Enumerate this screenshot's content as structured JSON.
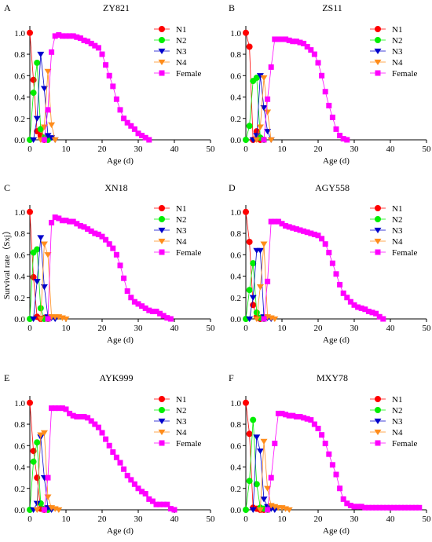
{
  "chart_data": [
    {
      "type": "line",
      "panel_letter": "A",
      "title": "ZY821",
      "xlabel": "Age (d)",
      "ylabel": "",
      "xlim": [
        0,
        50
      ],
      "ylim": [
        0,
        1.05
      ],
      "xticks": [
        "0",
        "10",
        "20",
        "30",
        "40",
        "50"
      ],
      "yticks": [
        "0.0",
        "0.2",
        "0.4",
        "0.6",
        "0.8",
        "1.0"
      ],
      "legend_position": "top-right",
      "series": [
        {
          "name": "N1",
          "color": "#ff0000",
          "marker": "circle",
          "x": [
            0,
            1,
            2,
            3,
            4
          ],
          "y": [
            1.0,
            0.56,
            0.08,
            0.04,
            0.0
          ]
        },
        {
          "name": "N2",
          "color": "#00ee00",
          "marker": "circle",
          "x": [
            0,
            1,
            2,
            3,
            4,
            5
          ],
          "y": [
            0.0,
            0.44,
            0.72,
            0.1,
            0.02,
            0.0
          ]
        },
        {
          "name": "N3",
          "color": "#0000cc",
          "marker": "triangle-down",
          "x": [
            1,
            2,
            3,
            4,
            5,
            6,
            7
          ],
          "y": [
            0.0,
            0.2,
            0.8,
            0.48,
            0.04,
            0.02,
            0.0
          ]
        },
        {
          "name": "N4",
          "color": "#ff8c1a",
          "marker": "triangle-down",
          "x": [
            3,
            4,
            5,
            6,
            7
          ],
          "y": [
            0.0,
            0.12,
            0.64,
            0.14,
            0.0
          ]
        },
        {
          "name": "Female",
          "color": "#ff00ff",
          "marker": "square",
          "x": [
            4,
            5,
            6,
            7,
            8,
            9,
            10,
            11,
            12,
            13,
            14,
            15,
            16,
            17,
            18,
            19,
            20,
            21,
            22,
            23,
            24,
            25,
            26,
            27,
            28,
            29,
            30,
            31,
            32,
            33
          ],
          "y": [
            0.0,
            0.28,
            0.82,
            0.97,
            0.98,
            0.97,
            0.97,
            0.97,
            0.97,
            0.96,
            0.95,
            0.93,
            0.92,
            0.9,
            0.88,
            0.86,
            0.8,
            0.7,
            0.6,
            0.5,
            0.38,
            0.28,
            0.2,
            0.16,
            0.13,
            0.1,
            0.06,
            0.04,
            0.02,
            0.0
          ]
        }
      ]
    },
    {
      "type": "line",
      "panel_letter": "B",
      "title": "ZS11",
      "xlabel": "Age (d)",
      "ylabel": "",
      "xlim": [
        0,
        50
      ],
      "ylim": [
        0,
        1.05
      ],
      "xticks": [
        "0",
        "10",
        "20",
        "30",
        "40",
        "50"
      ],
      "yticks": [
        "0.0",
        "0.2",
        "0.4",
        "0.6",
        "0.8",
        "1.0"
      ],
      "legend_position": "top-right",
      "series": [
        {
          "name": "N1",
          "color": "#ff0000",
          "marker": "circle",
          "x": [
            0,
            1,
            2,
            3,
            4
          ],
          "y": [
            1.0,
            0.87,
            0.0,
            0.08,
            0.0
          ]
        },
        {
          "name": "N2",
          "color": "#00ee00",
          "marker": "circle",
          "x": [
            0,
            1,
            2,
            3,
            4,
            5
          ],
          "y": [
            0.0,
            0.13,
            0.55,
            0.58,
            0.02,
            0.0
          ]
        },
        {
          "name": "N3",
          "color": "#0000cc",
          "marker": "triangle-down",
          "x": [
            2,
            3,
            4,
            5,
            6,
            7
          ],
          "y": [
            0.0,
            0.04,
            0.6,
            0.3,
            0.08,
            0.0
          ]
        },
        {
          "name": "N4",
          "color": "#ff8c1a",
          "marker": "triangle-down",
          "x": [
            3,
            4,
            5,
            6,
            7
          ],
          "y": [
            0.0,
            0.12,
            0.58,
            0.26,
            0.0
          ]
        },
        {
          "name": "Female",
          "color": "#ff00ff",
          "marker": "square",
          "x": [
            5,
            6,
            7,
            8,
            9,
            10,
            11,
            12,
            13,
            14,
            15,
            16,
            17,
            18,
            19,
            20,
            21,
            22,
            23,
            24,
            25,
            26,
            27,
            28
          ],
          "y": [
            0.0,
            0.38,
            0.68,
            0.94,
            0.94,
            0.94,
            0.94,
            0.93,
            0.92,
            0.92,
            0.91,
            0.9,
            0.87,
            0.84,
            0.8,
            0.72,
            0.6,
            0.45,
            0.32,
            0.21,
            0.1,
            0.04,
            0.01,
            0.0
          ]
        }
      ]
    },
    {
      "type": "line",
      "panel_letter": "C",
      "title": "XN18",
      "xlabel": "Age (d)",
      "ylabel": "Survival rate（Sxj）",
      "xlim": [
        0,
        50
      ],
      "ylim": [
        0,
        1.05
      ],
      "xticks": [
        "0",
        "10",
        "20",
        "30",
        "40",
        "50"
      ],
      "yticks": [
        "0.0",
        "0.2",
        "0.4",
        "0.6",
        "0.8",
        "1.0"
      ],
      "legend_position": "top-right",
      "series": [
        {
          "name": "N1",
          "color": "#ff0000",
          "marker": "circle",
          "x": [
            0,
            1,
            2,
            3,
            4,
            5
          ],
          "y": [
            1.0,
            0.39,
            0.02,
            0.0,
            0.01,
            0.0
          ]
        },
        {
          "name": "N2",
          "color": "#00ee00",
          "marker": "circle",
          "x": [
            0,
            1,
            2,
            3,
            4,
            5
          ],
          "y": [
            0.0,
            0.62,
            0.65,
            0.1,
            0.0,
            0.0
          ]
        },
        {
          "name": "N3",
          "color": "#0000cc",
          "marker": "triangle-down",
          "x": [
            1,
            2,
            3,
            4,
            5,
            6,
            7
          ],
          "y": [
            0.0,
            0.35,
            0.76,
            0.3,
            0.02,
            0.01,
            0.0
          ]
        },
        {
          "name": "N4",
          "color": "#ff8c1a",
          "marker": "triangle-down",
          "x": [
            3,
            4,
            5,
            6,
            7,
            8,
            9,
            10
          ],
          "y": [
            0.0,
            0.7,
            0.6,
            0.02,
            0.02,
            0.02,
            0.01,
            0.0
          ]
        },
        {
          "name": "Female",
          "color": "#ff00ff",
          "marker": "square",
          "x": [
            5,
            6,
            7,
            8,
            9,
            10,
            11,
            12,
            13,
            14,
            15,
            16,
            17,
            18,
            19,
            20,
            21,
            22,
            23,
            24,
            25,
            26,
            27,
            28,
            29,
            30,
            31,
            32,
            33,
            34,
            35,
            36,
            37,
            38,
            39
          ],
          "y": [
            0.0,
            0.9,
            0.95,
            0.94,
            0.92,
            0.92,
            0.91,
            0.91,
            0.89,
            0.87,
            0.86,
            0.84,
            0.82,
            0.8,
            0.79,
            0.77,
            0.74,
            0.7,
            0.66,
            0.6,
            0.5,
            0.38,
            0.26,
            0.2,
            0.16,
            0.14,
            0.12,
            0.1,
            0.08,
            0.07,
            0.07,
            0.05,
            0.03,
            0.01,
            0.0
          ]
        }
      ]
    },
    {
      "type": "line",
      "panel_letter": "D",
      "title": "AGY558",
      "xlabel": "Age (d)",
      "ylabel": "",
      "xlim": [
        0,
        50
      ],
      "ylim": [
        0,
        1.05
      ],
      "xticks": [
        "0",
        "10",
        "20",
        "30",
        "40",
        "50"
      ],
      "yticks": [
        "0.0",
        "0.2",
        "0.4",
        "0.6",
        "0.8",
        "1.0"
      ],
      "legend_position": "top-right",
      "series": [
        {
          "name": "N1",
          "color": "#ff0000",
          "marker": "circle",
          "x": [
            0,
            1,
            2,
            3,
            4
          ],
          "y": [
            1.0,
            0.72,
            0.13,
            0.02,
            0.0
          ]
        },
        {
          "name": "N2",
          "color": "#00ee00",
          "marker": "circle",
          "x": [
            0,
            1,
            2,
            3,
            4,
            5
          ],
          "y": [
            0.0,
            0.27,
            0.52,
            0.06,
            0.01,
            0.0
          ]
        },
        {
          "name": "N3",
          "color": "#0000cc",
          "marker": "triangle-down",
          "x": [
            1,
            2,
            3,
            4,
            5,
            6,
            7
          ],
          "y": [
            0.0,
            0.2,
            0.64,
            0.64,
            0.02,
            0.01,
            0.0
          ]
        },
        {
          "name": "N4",
          "color": "#ff8c1a",
          "marker": "triangle-down",
          "x": [
            3,
            4,
            5,
            6,
            7,
            8
          ],
          "y": [
            0.0,
            0.3,
            0.7,
            0.02,
            0.01,
            0.0
          ]
        },
        {
          "name": "Female",
          "color": "#ff00ff",
          "marker": "square",
          "x": [
            5,
            6,
            7,
            8,
            9,
            10,
            11,
            12,
            13,
            14,
            15,
            16,
            17,
            18,
            19,
            20,
            21,
            22,
            23,
            24,
            25,
            26,
            27,
            28,
            29,
            30,
            31,
            32,
            33,
            34,
            35,
            36,
            37,
            38
          ],
          "y": [
            0.0,
            0.35,
            0.91,
            0.91,
            0.91,
            0.89,
            0.87,
            0.86,
            0.85,
            0.84,
            0.83,
            0.82,
            0.81,
            0.8,
            0.79,
            0.78,
            0.75,
            0.7,
            0.62,
            0.52,
            0.42,
            0.32,
            0.24,
            0.2,
            0.16,
            0.13,
            0.11,
            0.1,
            0.09,
            0.07,
            0.06,
            0.05,
            0.02,
            0.0
          ]
        }
      ]
    },
    {
      "type": "line",
      "panel_letter": "E",
      "title": "AYK999",
      "xlabel": "Age (d)",
      "ylabel": "",
      "xlim": [
        0,
        50
      ],
      "ylim": [
        0,
        1.05
      ],
      "xticks": [
        "0",
        "10",
        "20",
        "30",
        "40",
        "50"
      ],
      "yticks": [
        "0.0",
        "0.2",
        "0.4",
        "0.6",
        "0.8",
        "1.0"
      ],
      "legend_position": "top-right",
      "series": [
        {
          "name": "N1",
          "color": "#ff0000",
          "marker": "circle",
          "x": [
            0,
            1,
            2,
            3,
            4
          ],
          "y": [
            1.0,
            0.55,
            0.3,
            0.01,
            0.0
          ]
        },
        {
          "name": "N2",
          "color": "#00ee00",
          "marker": "circle",
          "x": [
            0,
            1,
            2,
            3,
            4,
            5
          ],
          "y": [
            0.0,
            0.45,
            0.63,
            0.06,
            0.01,
            0.0
          ]
        },
        {
          "name": "N3",
          "color": "#0000cc",
          "marker": "triangle-down",
          "x": [
            1,
            2,
            3,
            4,
            5,
            6
          ],
          "y": [
            0.0,
            0.06,
            0.68,
            0.3,
            0.02,
            0.0
          ]
        },
        {
          "name": "N4",
          "color": "#ff8c1a",
          "marker": "triangle-down",
          "x": [
            2,
            3,
            4,
            5,
            6,
            7,
            8
          ],
          "y": [
            0.0,
            0.7,
            0.72,
            0.12,
            0.02,
            0.01,
            0.0
          ]
        },
        {
          "name": "Female",
          "color": "#ff00ff",
          "marker": "square",
          "x": [
            4,
            5,
            6,
            7,
            8,
            9,
            10,
            11,
            12,
            13,
            14,
            15,
            16,
            17,
            18,
            19,
            20,
            21,
            22,
            23,
            24,
            25,
            26,
            27,
            28,
            29,
            30,
            31,
            32,
            33,
            34,
            35,
            36,
            37,
            38,
            39,
            40
          ],
          "y": [
            0.0,
            0.3,
            0.95,
            0.95,
            0.95,
            0.95,
            0.94,
            0.9,
            0.88,
            0.87,
            0.87,
            0.87,
            0.86,
            0.83,
            0.8,
            0.77,
            0.72,
            0.66,
            0.6,
            0.54,
            0.49,
            0.44,
            0.38,
            0.32,
            0.28,
            0.24,
            0.2,
            0.17,
            0.15,
            0.1,
            0.08,
            0.05,
            0.05,
            0.05,
            0.05,
            0.01,
            0.0
          ]
        }
      ]
    },
    {
      "type": "line",
      "panel_letter": "F",
      "title": "MXY78",
      "xlabel": "Age (d)",
      "ylabel": "",
      "xlim": [
        0,
        50
      ],
      "ylim": [
        0,
        1.05
      ],
      "xticks": [
        "0",
        "10",
        "20",
        "30",
        "40",
        "50"
      ],
      "yticks": [
        "0.0",
        "0.2",
        "0.4",
        "0.6",
        "0.8",
        "1.0"
      ],
      "legend_position": "top-right",
      "series": [
        {
          "name": "N1",
          "color": "#ff0000",
          "marker": "circle",
          "x": [
            0,
            1,
            2,
            3,
            4,
            5
          ],
          "y": [
            1.0,
            0.71,
            0.02,
            0.01,
            0.0,
            0.0
          ]
        },
        {
          "name": "N2",
          "color": "#00ee00",
          "marker": "circle",
          "x": [
            0,
            1,
            2,
            3,
            4,
            5,
            6
          ],
          "y": [
            0.0,
            0.27,
            0.84,
            0.24,
            0.02,
            0.01,
            0.0
          ]
        },
        {
          "name": "N3",
          "color": "#0000cc",
          "marker": "triangle-down",
          "x": [
            2,
            3,
            4,
            5,
            6,
            7,
            8
          ],
          "y": [
            0.0,
            0.68,
            0.55,
            0.1,
            0.03,
            0.01,
            0.0
          ]
        },
        {
          "name": "N4",
          "color": "#ff8c1a",
          "marker": "triangle-down",
          "x": [
            4,
            5,
            6,
            7,
            8,
            9,
            10,
            11,
            12
          ],
          "y": [
            0.0,
            0.64,
            0.2,
            0.04,
            0.03,
            0.02,
            0.02,
            0.01,
            0.0
          ]
        },
        {
          "name": "Female",
          "color": "#ff00ff",
          "marker": "square",
          "x": [
            6,
            7,
            8,
            9,
            10,
            11,
            12,
            13,
            14,
            15,
            16,
            17,
            18,
            19,
            20,
            21,
            22,
            23,
            24,
            25,
            26,
            27,
            28,
            29,
            30,
            31,
            32,
            33,
            34,
            35,
            36,
            37,
            38,
            39,
            40,
            41,
            42,
            43,
            44,
            45,
            46,
            47,
            48
          ],
          "y": [
            0.0,
            0.3,
            0.62,
            0.9,
            0.9,
            0.89,
            0.88,
            0.88,
            0.87,
            0.87,
            0.86,
            0.85,
            0.84,
            0.8,
            0.76,
            0.7,
            0.62,
            0.52,
            0.42,
            0.33,
            0.2,
            0.1,
            0.06,
            0.04,
            0.03,
            0.03,
            0.03,
            0.02,
            0.02,
            0.02,
            0.02,
            0.02,
            0.02,
            0.02,
            0.02,
            0.02,
            0.02,
            0.02,
            0.02,
            0.02,
            0.02,
            0.02,
            0.02
          ]
        }
      ]
    }
  ]
}
